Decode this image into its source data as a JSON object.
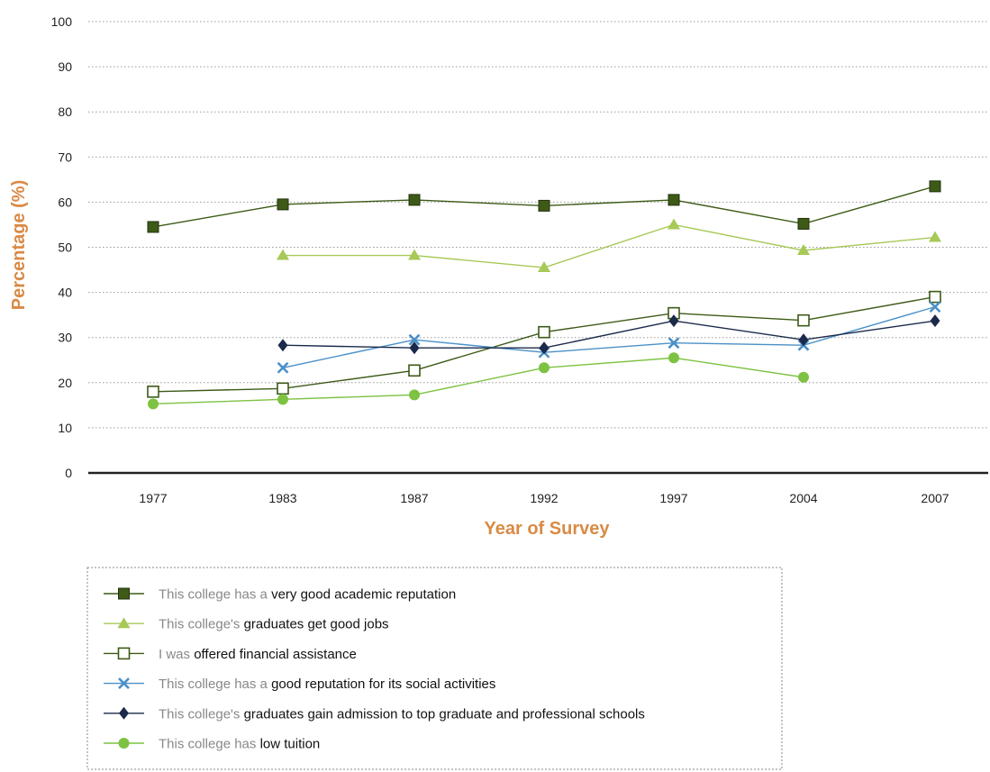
{
  "chart_data": {
    "type": "line",
    "xlabel": "Year of Survey",
    "ylabel": "Percentage (%)",
    "ylim": [
      0,
      100
    ],
    "yticks": [
      0,
      10,
      20,
      30,
      40,
      50,
      60,
      70,
      80,
      90,
      100
    ],
    "categories": [
      "1977",
      "1983",
      "1987",
      "1992",
      "1997",
      "2004",
      "2007"
    ],
    "grid": "horizontal dotted",
    "legend_position": "bottom",
    "series": [
      {
        "name": "This college has a very good academic reputation",
        "legend_prefix": "This college has a",
        "legend_emphasis": "very good academic reputation",
        "marker": "filled-square",
        "color": "#3d5a17",
        "values": [
          54.5,
          59.5,
          60.5,
          59.2,
          60.5,
          55.2,
          63.5
        ]
      },
      {
        "name": "This college's graduates get good jobs",
        "legend_prefix": "This college's",
        "legend_emphasis": "graduates get good jobs",
        "marker": "triangle",
        "color": "#a7c957",
        "values": [
          null,
          48.2,
          48.2,
          45.5,
          55.0,
          49.3,
          52.2
        ]
      },
      {
        "name": "I was offered financial assistance",
        "legend_prefix": "I was",
        "legend_emphasis": "offered financial assistance",
        "marker": "open-square",
        "color": "#3d5a17",
        "values": [
          18.0,
          18.7,
          22.7,
          31.2,
          35.4,
          33.8,
          39.0
        ]
      },
      {
        "name": "This college has a good reputation for its social activities",
        "legend_prefix": "This college has a",
        "legend_emphasis": "good reputation for its social activities",
        "marker": "x",
        "color": "#4a90c8",
        "values": [
          null,
          23.3,
          29.5,
          26.7,
          28.8,
          28.3,
          36.8
        ]
      },
      {
        "name": "This college's graduates gain admission to top graduate and professional schools",
        "legend_prefix": "This college's",
        "legend_emphasis": "graduates gain admission to top graduate and professional schools",
        "marker": "diamond",
        "color": "#1b2a4a",
        "values": [
          null,
          28.3,
          27.7,
          27.7,
          33.7,
          29.5,
          33.7
        ]
      },
      {
        "name": "This college has low tuition",
        "legend_prefix": "This college has",
        "legend_emphasis": "low tuition",
        "marker": "circle",
        "color": "#7dc242",
        "values": [
          15.3,
          16.3,
          17.3,
          23.3,
          25.5,
          21.2,
          null
        ]
      }
    ]
  }
}
